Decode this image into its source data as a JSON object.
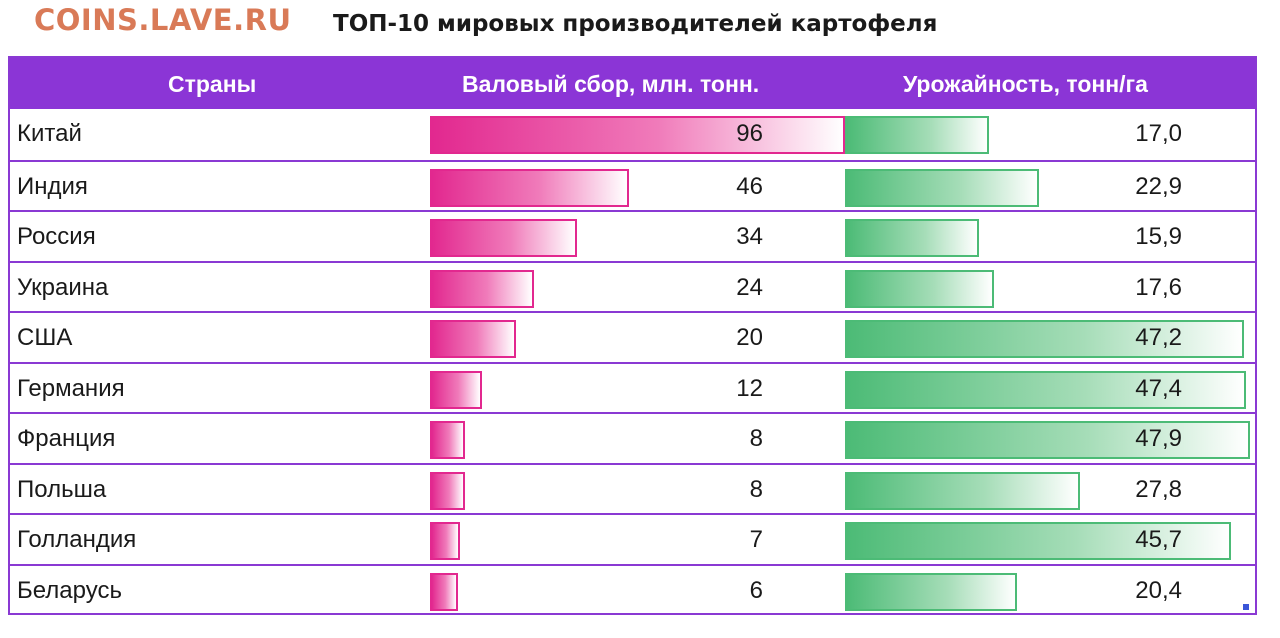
{
  "watermark": "COINS.LAVE.RU",
  "chart_data": {
    "type": "table",
    "title": "ТОП-10 мировых производителей картофеля",
    "columns": [
      "Страны",
      "Валовый сбор, млн. тонн.",
      "Урожайность, тонн/га"
    ],
    "categories": [
      "Китай",
      "Индия",
      "Россия",
      "Украина",
      "США",
      "Германия",
      "Франция",
      "Польша",
      "Голландия",
      "Беларусь"
    ],
    "series": [
      {
        "name": "Валовый сбор, млн. тонн.",
        "values": [
          96,
          46,
          34,
          24,
          20,
          12,
          8,
          8,
          7,
          6
        ],
        "labels": [
          "96",
          "46",
          "34",
          "24",
          "20",
          "12",
          "8",
          "8",
          "7",
          "6"
        ],
        "color": "#e2288f"
      },
      {
        "name": "Урожайность, тонн/га",
        "values": [
          17.0,
          22.9,
          15.9,
          17.6,
          47.2,
          47.4,
          47.9,
          27.8,
          45.7,
          20.4
        ],
        "labels": [
          "17,0",
          "22,9",
          "15,9",
          "17,6",
          "47,2",
          "47,4",
          "47,9",
          "27,8",
          "45,7",
          "20,4"
        ],
        "color": "#4cbb76"
      }
    ],
    "header_color": "#8b35d6"
  }
}
